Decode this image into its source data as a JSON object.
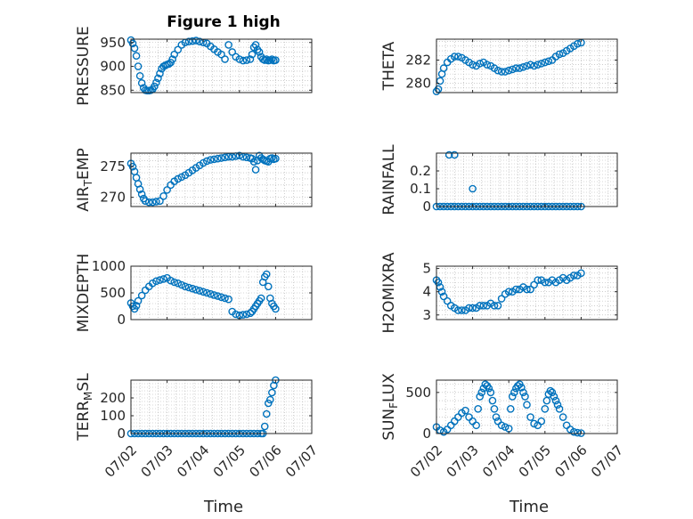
{
  "figure_title": "Figure 1 high",
  "x_axis_label": "Time",
  "x_tick_labels": [
    "07/02",
    "07/03",
    "07/04",
    "07/05",
    "07/06",
    "07/07"
  ],
  "colors": {
    "marker": "#0072BD",
    "axis": "#262626",
    "grid": "#b0b0b0"
  },
  "chart_data": [
    {
      "type": "scatter",
      "ylabel": "PRESSURE",
      "ylim": [
        845,
        957
      ],
      "yticks": [
        850,
        900,
        950
      ],
      "x_axis": "days from 07/02 (tick labels 07/02 … 07/07)",
      "xlim": [
        0,
        5
      ],
      "x": [
        0,
        0.05,
        0.1,
        0.15,
        0.2,
        0.25,
        0.3,
        0.35,
        0.4,
        0.45,
        0.5,
        0.55,
        0.6,
        0.65,
        0.7,
        0.75,
        0.8,
        0.85,
        0.9,
        0.95,
        1.0,
        1.05,
        1.1,
        1.15,
        1.2,
        1.3,
        1.4,
        1.5,
        1.6,
        1.7,
        1.8,
        1.9,
        2.0,
        2.1,
        2.2,
        2.3,
        2.4,
        2.5,
        2.6,
        2.7,
        2.8,
        2.9,
        3.0,
        3.1,
        3.2,
        3.3,
        3.35,
        3.4,
        3.45,
        3.5,
        3.55,
        3.6,
        3.65,
        3.7,
        3.75,
        3.8,
        3.85,
        3.9,
        3.95,
        4.0
      ],
      "y": [
        955,
        948,
        938,
        922,
        900,
        880,
        865,
        855,
        850,
        849,
        849,
        850,
        852,
        858,
        866,
        875,
        885,
        895,
        900,
        902,
        904,
        905,
        908,
        915,
        925,
        935,
        945,
        950,
        952,
        953,
        954,
        952,
        950,
        948,
        942,
        936,
        930,
        925,
        915,
        945,
        930,
        920,
        915,
        912,
        913,
        915,
        925,
        940,
        945,
        935,
        930,
        920,
        915,
        913,
        915,
        912,
        913,
        915,
        912,
        913
      ]
    },
    {
      "type": "scatter",
      "ylabel": "THETA",
      "ylim": [
        279.2,
        283.8
      ],
      "yticks": [
        280,
        282
      ],
      "x_axis": "days from 07/02",
      "xlim": [
        0,
        5
      ],
      "x": [
        0,
        0.05,
        0.1,
        0.15,
        0.2,
        0.3,
        0.4,
        0.5,
        0.6,
        0.7,
        0.8,
        0.9,
        1.0,
        1.1,
        1.2,
        1.3,
        1.4,
        1.5,
        1.6,
        1.7,
        1.8,
        1.9,
        2.0,
        2.1,
        2.2,
        2.3,
        2.4,
        2.5,
        2.6,
        2.7,
        2.8,
        2.9,
        3.0,
        3.1,
        3.2,
        3.3,
        3.4,
        3.5,
        3.6,
        3.7,
        3.8,
        3.9,
        4.0
      ],
      "y": [
        279.3,
        279.5,
        280.2,
        280.8,
        281.3,
        281.8,
        282.1,
        282.3,
        282.3,
        282.2,
        282.0,
        281.8,
        281.6,
        281.5,
        281.7,
        281.8,
        281.6,
        281.5,
        281.3,
        281.1,
        281.0,
        281.0,
        281.1,
        281.2,
        281.3,
        281.3,
        281.4,
        281.5,
        281.6,
        281.5,
        281.6,
        281.7,
        281.8,
        281.9,
        282.0,
        282.3,
        282.5,
        282.6,
        282.8,
        283.0,
        283.2,
        283.4,
        283.5
      ]
    },
    {
      "type": "scatter",
      "ylabel": "AIR_TEMP",
      "ylim": [
        268.5,
        277.2
      ],
      "yticks": [
        270,
        275
      ],
      "x_axis": "days from 07/02",
      "xlim": [
        0,
        5
      ],
      "x": [
        0,
        0.05,
        0.1,
        0.15,
        0.2,
        0.25,
        0.3,
        0.35,
        0.4,
        0.5,
        0.6,
        0.7,
        0.8,
        0.9,
        1.0,
        1.1,
        1.2,
        1.3,
        1.4,
        1.5,
        1.6,
        1.7,
        1.8,
        1.9,
        2.0,
        2.1,
        2.2,
        2.3,
        2.4,
        2.5,
        2.6,
        2.7,
        2.8,
        2.9,
        3.0,
        3.1,
        3.2,
        3.3,
        3.35,
        3.4,
        3.45,
        3.5,
        3.55,
        3.6,
        3.65,
        3.7,
        3.75,
        3.8,
        3.85,
        3.9,
        3.95,
        4.0
      ],
      "y": [
        275.5,
        275,
        274.2,
        273.2,
        272.2,
        271.3,
        270.5,
        269.8,
        269.4,
        269.2,
        269.2,
        269.3,
        269.4,
        270.2,
        271.2,
        272.0,
        272.6,
        273.0,
        273.3,
        273.6,
        274.0,
        274.4,
        274.8,
        275.2,
        275.6,
        275.9,
        276.1,
        276.2,
        276.3,
        276.4,
        276.5,
        276.6,
        276.6,
        276.7,
        276.8,
        276.6,
        276.5,
        276.4,
        276.3,
        275.8,
        274.5,
        276.0,
        276.8,
        276.4,
        276.2,
        276.0,
        275.9,
        275.8,
        276.3,
        276.4,
        276.2,
        276.3
      ]
    },
    {
      "type": "scatter",
      "ylabel": "RAINFALL",
      "ylim": [
        0,
        0.3
      ],
      "yticks": [
        0,
        0.1,
        0.2
      ],
      "x_axis": "days from 07/02",
      "xlim": [
        0,
        5
      ],
      "x": [
        0,
        0.1,
        0.2,
        0.3,
        0.4,
        0.5,
        0.6,
        0.7,
        0.8,
        0.9,
        1.0,
        1.1,
        1.2,
        1.3,
        1.4,
        1.5,
        1.6,
        1.7,
        1.8,
        1.9,
        2.0,
        2.1,
        2.2,
        2.3,
        2.4,
        2.5,
        2.6,
        2.7,
        2.8,
        2.9,
        3.0,
        3.1,
        3.2,
        3.3,
        3.4,
        3.5,
        3.6,
        3.7,
        3.8,
        3.9,
        4.0,
        0.35,
        0.5,
        1.0
      ],
      "y": [
        0,
        0,
        0,
        0,
        0,
        0,
        0,
        0,
        0,
        0,
        0,
        0,
        0,
        0,
        0,
        0,
        0,
        0,
        0,
        0,
        0,
        0,
        0,
        0,
        0,
        0,
        0,
        0,
        0,
        0,
        0,
        0,
        0,
        0,
        0,
        0,
        0,
        0,
        0,
        0,
        0,
        0.29,
        0.29,
        0.1
      ]
    },
    {
      "type": "scatter",
      "ylabel": "MIXDEPTH",
      "ylim": [
        0,
        1000
      ],
      "yticks": [
        0,
        500,
        1000
      ],
      "x_axis": "days from 07/02",
      "xlim": [
        0,
        5
      ],
      "x": [
        0,
        0.05,
        0.1,
        0.15,
        0.2,
        0.3,
        0.4,
        0.5,
        0.6,
        0.7,
        0.8,
        0.9,
        1.0,
        1.1,
        1.2,
        1.3,
        1.4,
        1.5,
        1.6,
        1.7,
        1.8,
        1.9,
        2.0,
        2.1,
        2.2,
        2.3,
        2.4,
        2.5,
        2.6,
        2.7,
        2.8,
        2.9,
        3.0,
        3.1,
        3.2,
        3.3,
        3.35,
        3.4,
        3.45,
        3.5,
        3.55,
        3.6,
        3.65,
        3.7,
        3.75,
        3.8,
        3.85,
        3.9,
        3.95,
        4.0
      ],
      "y": [
        310,
        250,
        200,
        260,
        350,
        450,
        550,
        620,
        680,
        720,
        740,
        760,
        780,
        730,
        700,
        680,
        650,
        620,
        600,
        580,
        560,
        540,
        520,
        500,
        480,
        460,
        440,
        420,
        400,
        380,
        150,
        100,
        80,
        90,
        100,
        120,
        150,
        200,
        250,
        300,
        350,
        400,
        700,
        800,
        850,
        620,
        400,
        300,
        250,
        200
      ]
    },
    {
      "type": "scatter",
      "ylabel": "H2OMIXRA",
      "ylim": [
        2.8,
        5.1
      ],
      "yticks": [
        3,
        4,
        5
      ],
      "x_axis": "days from 07/02",
      "xlim": [
        0,
        5
      ],
      "x": [
        0,
        0.05,
        0.1,
        0.15,
        0.2,
        0.3,
        0.4,
        0.5,
        0.6,
        0.7,
        0.8,
        0.9,
        1.0,
        1.1,
        1.2,
        1.3,
        1.4,
        1.5,
        1.6,
        1.7,
        1.8,
        1.9,
        2.0,
        2.1,
        2.2,
        2.3,
        2.4,
        2.5,
        2.6,
        2.7,
        2.8,
        2.9,
        3.0,
        3.1,
        3.2,
        3.3,
        3.4,
        3.5,
        3.6,
        3.7,
        3.8,
        3.9,
        4.0
      ],
      "y": [
        4.5,
        4.4,
        4.2,
        4.0,
        3.8,
        3.6,
        3.4,
        3.3,
        3.2,
        3.2,
        3.2,
        3.3,
        3.3,
        3.3,
        3.4,
        3.4,
        3.4,
        3.5,
        3.4,
        3.4,
        3.7,
        3.9,
        4.0,
        4.0,
        4.1,
        4.1,
        4.2,
        4.1,
        4.1,
        4.3,
        4.5,
        4.5,
        4.4,
        4.4,
        4.5,
        4.4,
        4.5,
        4.6,
        4.5,
        4.6,
        4.7,
        4.7,
        4.8
      ]
    },
    {
      "type": "scatter",
      "ylabel": "TERR_MSL",
      "ylim": [
        0,
        300
      ],
      "yticks": [
        0,
        100,
        200
      ],
      "x_axis": "days from 07/02",
      "xlim": [
        0,
        5
      ],
      "x": [
        0,
        0.1,
        0.2,
        0.3,
        0.4,
        0.5,
        0.6,
        0.7,
        0.8,
        0.9,
        1.0,
        1.1,
        1.2,
        1.3,
        1.4,
        1.5,
        1.6,
        1.7,
        1.8,
        1.9,
        2.0,
        2.1,
        2.2,
        2.3,
        2.4,
        2.5,
        2.6,
        2.7,
        2.8,
        2.9,
        3.0,
        3.1,
        3.2,
        3.3,
        3.4,
        3.5,
        3.6,
        3.65,
        3.7,
        3.75,
        3.8,
        3.85,
        3.9,
        3.95,
        4.0
      ],
      "y": [
        0,
        0,
        0,
        0,
        0,
        0,
        0,
        0,
        0,
        0,
        0,
        0,
        0,
        0,
        0,
        0,
        0,
        0,
        0,
        0,
        0,
        0,
        0,
        0,
        0,
        0,
        0,
        0,
        0,
        0,
        0,
        0,
        0,
        0,
        0,
        0,
        0,
        0,
        40,
        110,
        170,
        190,
        230,
        270,
        300
      ]
    },
    {
      "type": "scatter",
      "ylabel": "SUN_FLUX",
      "ylim": [
        0,
        650
      ],
      "yticks": [
        0,
        500
      ],
      "x_axis": "days from 07/02",
      "xlim": [
        0,
        5
      ],
      "x": [
        0,
        0.1,
        0.2,
        0.3,
        0.4,
        0.5,
        0.6,
        0.7,
        0.8,
        0.9,
        1.0,
        1.1,
        1.15,
        1.2,
        1.25,
        1.3,
        1.35,
        1.4,
        1.45,
        1.5,
        1.55,
        1.6,
        1.65,
        1.7,
        1.8,
        1.9,
        2.0,
        2.05,
        2.1,
        2.15,
        2.2,
        2.25,
        2.3,
        2.35,
        2.4,
        2.45,
        2.5,
        2.6,
        2.7,
        2.8,
        2.9,
        3.0,
        3.05,
        3.1,
        3.15,
        3.2,
        3.25,
        3.3,
        3.35,
        3.4,
        3.5,
        3.6,
        3.7,
        3.8,
        3.9,
        4.0
      ],
      "y": [
        80,
        40,
        20,
        50,
        100,
        150,
        200,
        250,
        280,
        200,
        150,
        100,
        300,
        450,
        500,
        550,
        600,
        580,
        550,
        500,
        400,
        300,
        200,
        150,
        100,
        80,
        60,
        300,
        450,
        500,
        550,
        580,
        600,
        560,
        500,
        450,
        350,
        200,
        120,
        100,
        150,
        300,
        400,
        480,
        520,
        500,
        450,
        400,
        350,
        300,
        200,
        100,
        50,
        20,
        10,
        5
      ]
    }
  ]
}
